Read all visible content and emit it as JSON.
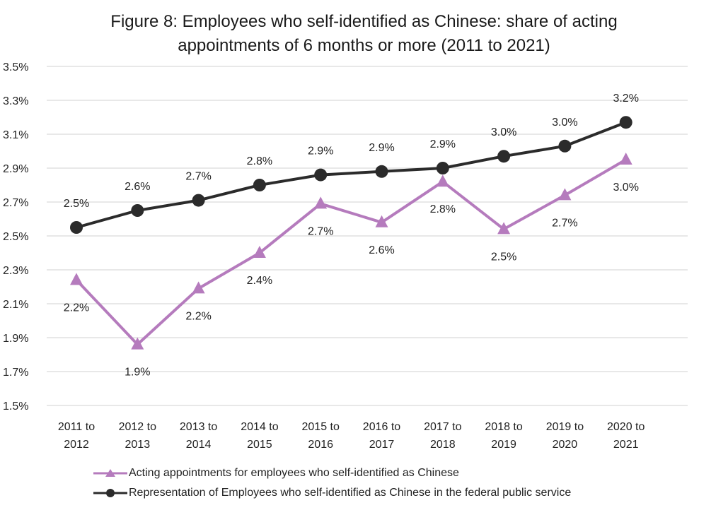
{
  "chart_data": {
    "type": "line",
    "title_lines": [
      "Figure 8: Employees who self-identified as Chinese: share of acting",
      "appointments of 6 months or more (2011 to 2021)"
    ],
    "categories": [
      [
        "2011 to",
        "2012"
      ],
      [
        "2012 to",
        "2013"
      ],
      [
        "2013 to",
        "2014"
      ],
      [
        "2014 to",
        "2015"
      ],
      [
        "2015 to",
        "2016"
      ],
      [
        "2016 to",
        "2017"
      ],
      [
        "2017 to",
        "2018"
      ],
      [
        "2018 to",
        "2019"
      ],
      [
        "2019 to",
        "2020"
      ],
      [
        "2020 to",
        "2021"
      ]
    ],
    "ylim": [
      1.5,
      3.5
    ],
    "yticks": [
      "1.5%",
      "1.7%",
      "1.9%",
      "2.1%",
      "2.3%",
      "2.5%",
      "2.7%",
      "2.9%",
      "3.1%",
      "3.3%",
      "3.5%"
    ],
    "ytick_values": [
      1.5,
      1.7,
      1.9,
      2.1,
      2.3,
      2.5,
      2.7,
      2.9,
      3.1,
      3.3,
      3.5
    ],
    "grid": true,
    "legend_position": "bottom",
    "series": [
      {
        "name": "Acting appointments for employees who self-identified as Chinese",
        "marker": "triangle",
        "color": "#b57bbd",
        "values": [
          2.24,
          1.86,
          2.19,
          2.4,
          2.69,
          2.58,
          2.82,
          2.54,
          2.74,
          2.95
        ],
        "labels": [
          "2.2%",
          "1.9%",
          "2.2%",
          "2.4%",
          "2.7%",
          "2.6%",
          "2.8%",
          "2.5%",
          "2.7%",
          "3.0%"
        ],
        "label_position": "below"
      },
      {
        "name": "Representation of Employees who self-identified as Chinese in the federal public service",
        "marker": "circle",
        "color": "#2b2b2b",
        "values": [
          2.55,
          2.65,
          2.71,
          2.8,
          2.86,
          2.88,
          2.9,
          2.97,
          3.03,
          3.17
        ],
        "labels": [
          "2.5%",
          "2.6%",
          "2.7%",
          "2.8%",
          "2.9%",
          "2.9%",
          "2.9%",
          "3.0%",
          "3.0%",
          "3.2%"
        ],
        "label_position": "above"
      }
    ]
  }
}
